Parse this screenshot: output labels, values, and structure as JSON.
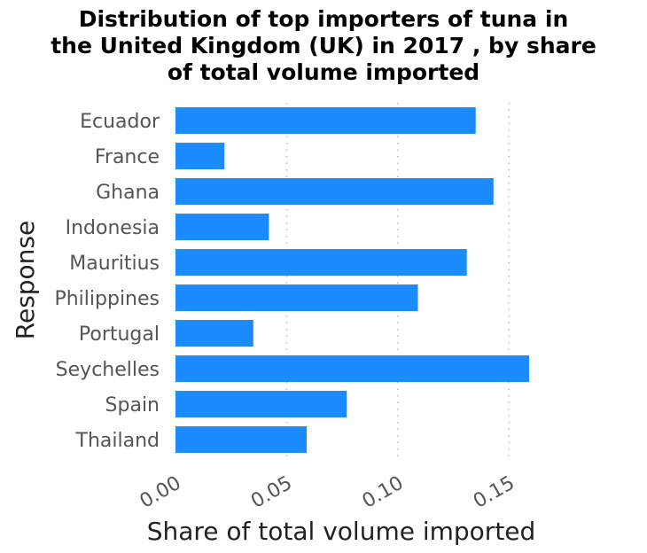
{
  "chart_data": {
    "type": "bar",
    "orientation": "horizontal",
    "title": "Distribution of top importers of tuna in the United Kingdom (UK) in 2017 , by share of total volume imported",
    "title_lines": [
      "Distribution of top importers of tuna in",
      "the United Kingdom (UK) in 2017 , by share",
      "of total volume imported"
    ],
    "xlabel": "Share of total volume imported",
    "ylabel": "Response",
    "categories": [
      "Ecuador",
      "France",
      "Ghana",
      "Indonesia",
      "Mauritius",
      "Philippines",
      "Portugal",
      "Seychelles",
      "Spain",
      "Thailand"
    ],
    "values": [
      0.135,
      0.022,
      0.143,
      0.042,
      0.131,
      0.109,
      0.035,
      0.159,
      0.077,
      0.059
    ],
    "xlim": [
      0,
      0.165
    ],
    "xticks": [
      0,
      0.05,
      0.1,
      0.15
    ],
    "xtick_labels": [
      "0.00",
      "0.05",
      "0.10",
      "0.15"
    ],
    "grid": "vertical dotted",
    "bar_color": "#1a8cff"
  }
}
